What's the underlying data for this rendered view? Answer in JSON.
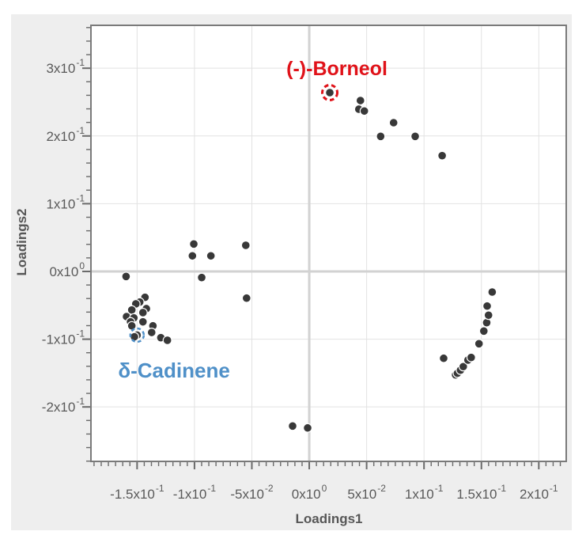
{
  "figure": {
    "outer_bg": "#ffffff",
    "panel_bg": "#eeeeee",
    "plot_bg": "#ffffff",
    "frame_color": "#7a7a7a",
    "grid_color": "#e2e2e2",
    "zero_line_color": "#d2d2d2",
    "tick_color": "#6a6a6a",
    "tick_label_color": "#595959",
    "dot_color": "#383838",
    "dot_outline": "#ffffff"
  },
  "chart_data": {
    "type": "scatter",
    "title": "",
    "xlabel": "Loadings1",
    "ylabel": "Loadings2",
    "xlim": [
      -0.1902,
      0.2239
    ],
    "ylim": [
      -0.2804,
      0.3633
    ],
    "grid": true,
    "x_minor_step": 0.00625,
    "y_minor_step": 0.02,
    "x_ticks": [
      {
        "v": -0.15,
        "m": "-1.5x10",
        "e": "-1"
      },
      {
        "v": -0.1,
        "m": "-1x10",
        "e": "-1"
      },
      {
        "v": -0.05,
        "m": "-5x10",
        "e": "-2"
      },
      {
        "v": 0.0,
        "m": "0x10",
        "e": "0"
      },
      {
        "v": 0.05,
        "m": "5x10",
        "e": "-2"
      },
      {
        "v": 0.1,
        "m": "1x10",
        "e": "-1"
      },
      {
        "v": 0.15,
        "m": "1.5x10",
        "e": "-1"
      },
      {
        "v": 0.2,
        "m": "2x10",
        "e": "-1"
      }
    ],
    "y_ticks": [
      {
        "v": 0.3,
        "m": "3x10",
        "e": "-1"
      },
      {
        "v": 0.2,
        "m": "2x10",
        "e": "-1"
      },
      {
        "v": 0.1,
        "m": "1x10",
        "e": "-1"
      },
      {
        "v": 0.0,
        "m": "0x10",
        "e": "0"
      },
      {
        "v": -0.1,
        "m": "-1x10",
        "e": "-1"
      },
      {
        "v": -0.2,
        "m": "-2x10",
        "e": "-1"
      }
    ],
    "points": [
      [
        0.0179,
        0.264
      ],
      [
        0.0446,
        0.2523
      ],
      [
        0.0432,
        0.2395
      ],
      [
        0.048,
        0.2368
      ],
      [
        0.0735,
        0.2196
      ],
      [
        0.0622,
        0.1994
      ],
      [
        0.0923,
        0.1994
      ],
      [
        0.1158,
        0.1709
      ],
      [
        -0.1006,
        0.0405
      ],
      [
        -0.1018,
        0.023
      ],
      [
        -0.0857,
        0.023
      ],
      [
        -0.0553,
        0.0386
      ],
      [
        -0.0937,
        -0.009
      ],
      [
        -0.0546,
        -0.0394
      ],
      [
        -0.1596,
        -0.0074
      ],
      [
        -0.1431,
        -0.0382
      ],
      [
        -0.1477,
        -0.0452
      ],
      [
        -0.1511,
        -0.0479
      ],
      [
        -0.1419,
        -0.0549
      ],
      [
        -0.1546,
        -0.0569
      ],
      [
        -0.1449,
        -0.0607
      ],
      [
        -0.1592,
        -0.0666
      ],
      [
        -0.1528,
        -0.0686
      ],
      [
        -0.1557,
        -0.0744
      ],
      [
        -0.1449,
        -0.0744
      ],
      [
        -0.1546,
        -0.0803
      ],
      [
        -0.1362,
        -0.0803
      ],
      [
        -0.1373,
        -0.09
      ],
      [
        -0.15,
        -0.094
      ],
      [
        -0.1523,
        -0.0964
      ],
      [
        -0.1293,
        -0.0978
      ],
      [
        -0.1236,
        -0.1016
      ],
      [
        -0.0145,
        -0.2282
      ],
      [
        -0.0014,
        -0.231
      ],
      [
        0.1171,
        -0.1282
      ],
      [
        0.1275,
        -0.1527
      ],
      [
        0.1291,
        -0.1503
      ],
      [
        0.1318,
        -0.1457
      ],
      [
        0.1342,
        -0.1405
      ],
      [
        0.1383,
        -0.1308
      ],
      [
        0.1411,
        -0.127
      ],
      [
        0.1479,
        -0.1067
      ],
      [
        0.1521,
        -0.088
      ],
      [
        0.1546,
        -0.0756
      ],
      [
        0.1562,
        -0.0646
      ],
      [
        0.155,
        -0.0511
      ],
      [
        0.1594,
        -0.0304
      ]
    ],
    "annotations": [
      {
        "id": "borneol",
        "text": "(-)-Borneol",
        "color": "#e01219",
        "point_xy": [
          0.0179,
          0.264
        ],
        "label_xy": [
          0.0241,
          0.3002
        ],
        "font_px": 25,
        "ring_r": 9.5,
        "ring_w": 3,
        "ring_dash": "5.5 3.8"
      },
      {
        "id": "cadinene",
        "text": "δ-Cadinene",
        "color": "#4f90c8",
        "point_xy": [
          -0.15,
          -0.094
        ],
        "label_xy": [
          -0.1178,
          -0.146
        ],
        "font_px": 26,
        "ring_r": 8.5,
        "ring_w": 2.5,
        "ring_dash": "4.5 3.5"
      }
    ]
  }
}
